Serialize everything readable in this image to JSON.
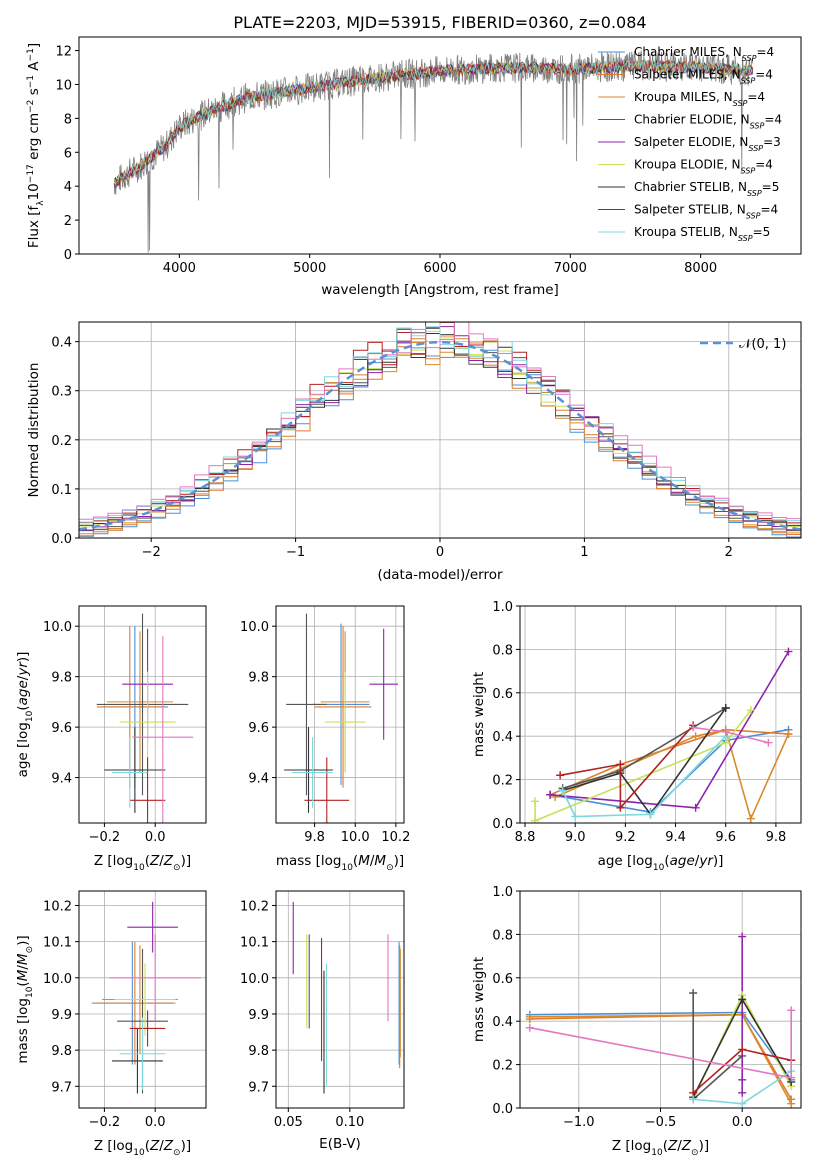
{
  "colors": {
    "Chabrier MILES": "#4a90d9",
    "Salpeter MILES": "#e07b2d",
    "Kroupa MILES": "#d98a2c",
    "Chabrier ELODIE": "#555555",
    "Salpeter ELODIE": "#8e24aa",
    "Kroupa ELODIE": "#c8e05a",
    "Chabrier STELIB": "#333333",
    "Salpeter STELIB": "#b22222",
    "Kroupa STELIB": "#7fd8e0",
    "pink": "#e377c2"
  },
  "chart_data": [
    {
      "id": "spectrum",
      "type": "line",
      "title": "PLATE=2203, MJD=53915, FIBERID=0360, z=0.084",
      "xlabel": "wavelength [Angstrom, rest frame]",
      "ylabel": "Flux [f_λ10^-17 erg cm^-2 s^-1 A^-1]",
      "xlim": [
        3230,
        8770
      ],
      "ylim": [
        0,
        12.8
      ],
      "xticks": [
        4000,
        5000,
        6000,
        7000,
        8000
      ],
      "yticks": [
        0,
        2,
        4,
        6,
        8,
        10,
        12
      ],
      "data_range": [
        3500,
        8400
      ],
      "continuum": [
        [
          3500,
          4.2
        ],
        [
          3700,
          5.2
        ],
        [
          3900,
          6.4
        ],
        [
          4000,
          7.5
        ],
        [
          4200,
          8.3
        ],
        [
          4500,
          9.2
        ],
        [
          5000,
          9.8
        ],
        [
          5500,
          10.4
        ],
        [
          6000,
          10.8
        ],
        [
          6500,
          11.0
        ],
        [
          7000,
          10.9
        ],
        [
          7500,
          11.1
        ],
        [
          8000,
          11.0
        ],
        [
          8400,
          10.8
        ]
      ],
      "legend_position": "upper right",
      "grid": false,
      "series": [
        {
          "name": "Chabrier MILES",
          "label": "Chabrier MILES, N_SSP=4"
        },
        {
          "name": "Salpeter MILES",
          "label": "Salpeter MILES, N_SSP=4"
        },
        {
          "name": "Kroupa MILES",
          "label": "Kroupa MILES, N_SSP=4"
        },
        {
          "name": "Chabrier ELODIE",
          "label": "Chabrier ELODIE, N_SSP=4"
        },
        {
          "name": "Salpeter ELODIE",
          "label": "Salpeter ELODIE, N_SSP=3"
        },
        {
          "name": "Kroupa ELODIE",
          "label": "Kroupa ELODIE, N_SSP=4"
        },
        {
          "name": "Chabrier STELIB",
          "label": "Chabrier STELIB, N_SSP=5"
        },
        {
          "name": "Salpeter STELIB",
          "label": "Salpeter STELIB, N_SSP=4"
        },
        {
          "name": "Kroupa STELIB",
          "label": "Kroupa STELIB, N_SSP=5"
        }
      ]
    },
    {
      "id": "residuals",
      "type": "line",
      "xlabel": "(data-model)/error",
      "ylabel": "Normed distribution",
      "xlim": [
        -2.5,
        2.5
      ],
      "ylim": [
        0,
        0.44
      ],
      "xticks": [
        -2,
        -1,
        0,
        1,
        2
      ],
      "yticks": [
        0.0,
        0.1,
        0.2,
        0.3,
        0.4
      ],
      "grid": true,
      "legend": "𝒩(0, 1)",
      "legend_position": "upper right",
      "bin_width": 0.1
    },
    {
      "id": "age-vs-Z",
      "type": "scatter",
      "xlabel": "Z [log10(Z/Z⊙)]",
      "ylabel": "age  [log10(age/yr)]",
      "xlim": [
        -0.3,
        0.2
      ],
      "ylim": [
        9.22,
        10.08
      ],
      "xticks": [
        -0.2,
        0.0
      ],
      "yticks": [
        9.4,
        9.6,
        9.8,
        10.0
      ],
      "grid": true,
      "points": [
        {
          "s": "Chabrier MILES",
          "x": -0.08,
          "xe": 0.13,
          "y": 9.68,
          "ye": 0.32
        },
        {
          "s": "Salpeter MILES",
          "x": -0.1,
          "xe": 0.13,
          "y": 9.68,
          "ye": 0.32
        },
        {
          "s": "Kroupa MILES",
          "x": -0.06,
          "xe": 0.13,
          "y": 9.7,
          "ye": 0.28
        },
        {
          "s": "Chabrier ELODIE",
          "x": -0.05,
          "xe": 0.18,
          "y": 9.69,
          "ye": 0.36
        },
        {
          "s": "Salpeter ELODIE",
          "x": -0.03,
          "xe": 0.1,
          "y": 9.77,
          "ye": 0.22
        },
        {
          "s": "Kroupa ELODIE",
          "x": -0.03,
          "xe": 0.11,
          "y": 9.62,
          "ye": 0.2
        },
        {
          "s": "Chabrier STELIB",
          "x": -0.08,
          "xe": 0.12,
          "y": 9.43,
          "ye": 0.17
        },
        {
          "s": "Salpeter STELIB",
          "x": -0.03,
          "xe": 0.07,
          "y": 9.31,
          "ye": 0.17
        },
        {
          "s": "Kroupa STELIB",
          "x": -0.1,
          "xe": 0.07,
          "y": 9.42,
          "ye": 0.14
        },
        {
          "s": "pink",
          "x": 0.03,
          "xe": 0.12,
          "y": 9.56,
          "ye": 0.4
        }
      ]
    },
    {
      "id": "age-vs-mass",
      "type": "scatter",
      "xlabel": "mass [log10(M/M⊙)]",
      "ylabel": "",
      "xlim": [
        9.61,
        10.24
      ],
      "ylim": [
        9.22,
        10.08
      ],
      "xticks": [
        9.8,
        10.0,
        10.2
      ],
      "yticks": [
        9.4,
        9.6,
        9.8,
        10.0
      ],
      "grid": true,
      "points": [
        {
          "s": "Chabrier MILES",
          "x": 9.93,
          "xe": 0.14,
          "y": 9.69,
          "ye": 0.32
        },
        {
          "s": "Salpeter MILES",
          "x": 9.94,
          "xe": 0.14,
          "y": 9.68,
          "ye": 0.32
        },
        {
          "s": "Kroupa MILES",
          "x": 9.95,
          "xe": 0.12,
          "y": 9.7,
          "ye": 0.28
        },
        {
          "s": "Chabrier ELODIE",
          "x": 9.76,
          "xe": 0.1,
          "y": 9.69,
          "ye": 0.36
        },
        {
          "s": "Salpeter ELODIE",
          "x": 10.14,
          "xe": 0.07,
          "y": 9.77,
          "ye": 0.22
        },
        {
          "s": "Kroupa ELODIE",
          "x": 9.95,
          "xe": 0.1,
          "y": 9.62,
          "ye": 0.2
        },
        {
          "s": "Chabrier STELIB",
          "x": 9.77,
          "xe": 0.12,
          "y": 9.43,
          "ye": 0.17
        },
        {
          "s": "Salpeter STELIB",
          "x": 9.86,
          "xe": 0.11,
          "y": 9.31,
          "ye": 0.17
        },
        {
          "s": "Kroupa STELIB",
          "x": 9.79,
          "xe": 0.1,
          "y": 9.42,
          "ye": 0.14
        }
      ]
    },
    {
      "id": "weight-vs-age",
      "type": "line",
      "xlabel": "age  [log10(age/yr)]",
      "ylabel": "mass weight",
      "xlim": [
        8.78,
        9.9
      ],
      "ylim": [
        0,
        1
      ],
      "xticks": [
        8.8,
        9.0,
        9.2,
        9.4,
        9.6,
        9.8
      ],
      "yticks": [
        0.0,
        0.2,
        0.4,
        0.6,
        0.8,
        1.0
      ],
      "grid": true,
      "series": [
        {
          "s": "Chabrier MILES",
          "x": [
            8.9,
            9.3,
            9.6,
            9.85
          ],
          "y": [
            0.13,
            0.05,
            0.38,
            0.43
          ]
        },
        {
          "s": "Salpeter MILES",
          "x": [
            8.9,
            9.18,
            9.6,
            9.85
          ],
          "y": [
            0.13,
            0.27,
            0.43,
            0.41
          ]
        },
        {
          "s": "Kroupa MILES",
          "x": [
            8.92,
            9.48,
            9.6,
            9.7,
            9.85
          ],
          "y": [
            0.12,
            0.4,
            0.43,
            0.02,
            0.41
          ]
        },
        {
          "s": "Chabrier ELODIE",
          "x": [
            8.95,
            9.18,
            9.6
          ],
          "y": [
            0.16,
            0.24,
            0.53
          ]
        },
        {
          "s": "Salpeter ELODIE",
          "x": [
            8.9,
            9.48,
            9.85
          ],
          "y": [
            0.13,
            0.07,
            0.79
          ]
        },
        {
          "s": "Kroupa ELODIE",
          "x": [
            8.84,
            8.84,
            9.6,
            9.7
          ],
          "y": [
            0.1,
            0.01,
            0.37,
            0.52
          ]
        },
        {
          "s": "Chabrier STELIB",
          "x": [
            8.95,
            9.18,
            9.3,
            9.6
          ],
          "y": [
            0.15,
            0.23,
            0.04,
            0.53
          ]
        },
        {
          "s": "Salpeter STELIB",
          "x": [
            8.94,
            9.18,
            9.18,
            9.47
          ],
          "y": [
            0.22,
            0.27,
            0.07,
            0.45
          ]
        },
        {
          "s": "Kroupa STELIB",
          "x": [
            8.95,
            9.0,
            9.3,
            9.6
          ],
          "y": [
            0.15,
            0.03,
            0.04,
            0.4
          ]
        },
        {
          "s": "pink",
          "x": [
            9.47,
            9.6,
            9.77
          ],
          "y": [
            0.44,
            0.42,
            0.37
          ]
        }
      ]
    },
    {
      "id": "mass-vs-Z",
      "type": "scatter",
      "xlabel": "Z [log10(Z/Z⊙)]",
      "ylabel": "mass [log10(M/M⊙)]",
      "xlim": [
        -0.3,
        0.2
      ],
      "ylim": [
        9.64,
        10.24
      ],
      "xticks": [
        -0.2,
        0.0
      ],
      "yticks": [
        9.7,
        9.8,
        9.9,
        10.0,
        10.1,
        10.2
      ],
      "grid": true,
      "points": [
        {
          "s": "Chabrier MILES",
          "x": -0.09,
          "xe": 0.16,
          "y": 9.93,
          "ye": 0.17
        },
        {
          "s": "Salpeter MILES",
          "x": -0.08,
          "xe": 0.16,
          "y": 9.93,
          "ye": 0.17
        },
        {
          "s": "Kroupa MILES",
          "x": -0.06,
          "xe": 0.15,
          "y": 9.94,
          "ye": 0.15
        },
        {
          "s": "Chabrier ELODIE",
          "x": -0.05,
          "xe": 0.1,
          "y": 9.88,
          "ye": 0.2
        },
        {
          "s": "Salpeter ELODIE",
          "x": -0.01,
          "xe": 0.1,
          "y": 10.14,
          "ye": 0.07
        },
        {
          "s": "Kroupa ELODIE",
          "x": -0.04,
          "xe": 0.12,
          "y": 9.94,
          "ye": 0.1
        },
        {
          "s": "Chabrier STELIB",
          "x": -0.07,
          "xe": 0.1,
          "y": 9.77,
          "ye": 0.09
        },
        {
          "s": "Salpeter STELIB",
          "x": -0.03,
          "xe": 0.07,
          "y": 9.86,
          "ye": 0.05
        },
        {
          "s": "Kroupa STELIB",
          "x": -0.05,
          "xe": 0.09,
          "y": 9.79,
          "ye": 0.1
        },
        {
          "s": "pink",
          "x": 0.0,
          "xe": 0.18,
          "y": 10.0,
          "ye": 0.12
        }
      ]
    },
    {
      "id": "mass-vs-ebv",
      "type": "scatter",
      "xlabel": "E(B-V)",
      "ylabel": "",
      "xlim": [
        0.04,
        0.144
      ],
      "ylim": [
        9.64,
        10.24
      ],
      "xticks": [
        0.05,
        0.1
      ],
      "yticks": [
        9.7,
        9.8,
        9.9,
        10.0,
        10.1,
        10.2
      ],
      "grid": true,
      "points": [
        {
          "s": "Chabrier MILES",
          "x": 0.14,
          "xe": 0,
          "y": 9.93,
          "ye": 0.17
        },
        {
          "s": "Salpeter MILES",
          "x": 0.1405,
          "xe": 0,
          "y": 9.92,
          "ye": 0.17
        },
        {
          "s": "Kroupa MILES",
          "x": 0.141,
          "xe": 0,
          "y": 9.93,
          "ye": 0.15
        },
        {
          "s": "Chabrier ELODIE",
          "x": 0.067,
          "xe": 0,
          "y": 9.99,
          "ye": 0.13
        },
        {
          "s": "Salpeter ELODIE",
          "x": 0.054,
          "xe": 0,
          "y": 10.11,
          "ye": 0.1
        },
        {
          "s": "Kroupa ELODIE",
          "x": 0.065,
          "xe": 0,
          "y": 9.99,
          "ye": 0.13
        },
        {
          "s": "Chabrier STELIB",
          "x": 0.079,
          "xe": 0,
          "y": 9.85,
          "ye": 0.17
        },
        {
          "s": "Salpeter STELIB",
          "x": 0.077,
          "xe": 0,
          "y": 9.94,
          "ye": 0.17
        },
        {
          "s": "Kroupa STELIB",
          "x": 0.081,
          "xe": 0,
          "y": 9.87,
          "ye": 0.17
        },
        {
          "s": "pink",
          "x": 0.131,
          "xe": 0,
          "y": 10.0,
          "ye": 0.12
        }
      ]
    },
    {
      "id": "weight-vs-Z",
      "type": "line",
      "xlabel": "Z [log10(Z/Z⊙)]",
      "ylabel": "mass weight",
      "xlim": [
        -1.36,
        0.36
      ],
      "ylim": [
        0,
        1
      ],
      "xticks": [
        -1.0,
        -0.5,
        0.0
      ],
      "yticks": [
        0.0,
        0.2,
        0.4,
        0.6,
        0.8,
        1.0
      ],
      "grid": true,
      "series": [
        {
          "s": "Chabrier MILES",
          "x": [
            -1.3,
            0.0,
            0.3
          ],
          "y": [
            0.43,
            0.44,
            0.13
          ]
        },
        {
          "s": "Salpeter MILES",
          "x": [
            -1.3,
            0.0,
            0.3
          ],
          "y": [
            0.41,
            0.43,
            0.04
          ]
        },
        {
          "s": "Kroupa MILES",
          "x": [
            -1.3,
            0.0,
            0.3
          ],
          "y": [
            0.42,
            0.43,
            0.02
          ]
        },
        {
          "s": "Chabrier ELODIE",
          "x": [
            -0.3,
            -0.3,
            0.0
          ],
          "y": [
            0.53,
            0.04,
            0.24
          ]
        },
        {
          "s": "Salpeter ELODIE",
          "x": [
            0.0,
            0.0,
            0.0
          ],
          "y": [
            0.79,
            0.13,
            0.07
          ]
        },
        {
          "s": "Kroupa ELODIE",
          "x": [
            -0.3,
            0.0,
            0.3
          ],
          "y": [
            0.04,
            0.52,
            0.1
          ]
        },
        {
          "s": "Chabrier STELIB",
          "x": [
            -0.3,
            0.0,
            0.3
          ],
          "y": [
            0.05,
            0.5,
            0.12
          ]
        },
        {
          "s": "Salpeter STELIB",
          "x": [
            -0.3,
            0.0,
            0.3
          ],
          "y": [
            0.07,
            0.27,
            0.22
          ]
        },
        {
          "s": "Kroupa STELIB",
          "x": [
            -0.3,
            0.0,
            0.3
          ],
          "y": [
            0.04,
            0.02,
            0.17
          ]
        },
        {
          "s": "pink",
          "x": [
            -1.3,
            0.3,
            0.3
          ],
          "y": [
            0.37,
            0.14,
            0.45
          ]
        }
      ]
    }
  ]
}
